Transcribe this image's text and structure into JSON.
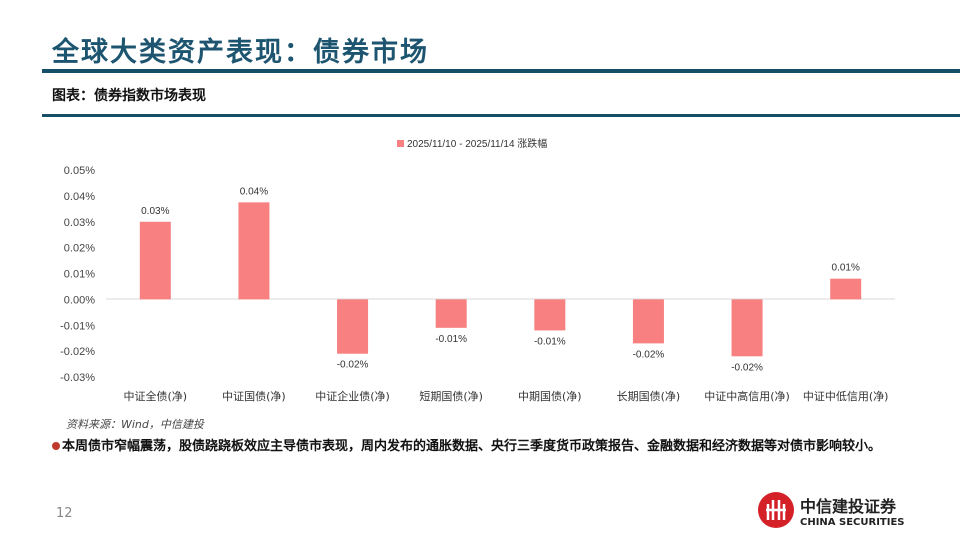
{
  "header": {
    "title": "全球大类资产表现：债券市场",
    "subtitle": "图表：债券指数市场表现"
  },
  "chart_data": {
    "type": "bar",
    "legend": "2025/11/10 - 2025/11/14 涨跌幅",
    "legend_position": "top",
    "categories": [
      "中证全债(净)",
      "中证国债(净)",
      "中证企业债(净)",
      "短期国债(净)",
      "中期国债(净)",
      "长期国债(净)",
      "中证中高信用(净)",
      "中证中低信用(净)"
    ],
    "values": [
      0.03,
      0.0375,
      -0.021,
      -0.011,
      -0.012,
      -0.017,
      -0.022,
      0.008
    ],
    "data_labels": [
      "0.03%",
      "0.04%",
      "-0.02%",
      "-0.01%",
      "-0.01%",
      "-0.02%",
      "-0.02%",
      "0.01%"
    ],
    "yticks": [
      "0.05%",
      "0.04%",
      "0.03%",
      "0.02%",
      "0.01%",
      "0.00%",
      "-0.01%",
      "-0.02%",
      "-0.03%"
    ],
    "ylim": [
      -0.03,
      0.05
    ],
    "color": "#f88080",
    "grid": false
  },
  "source": "资料来源：Wind，中信建投",
  "bullet": "本周债市窄幅震荡，股债跷跷板效应主导债市表现，周内发布的通胀数据、央行三季度货币政策报告、金融数据和经济数据等对债市影响较小。",
  "page_number": "12",
  "logo": {
    "cn": "中信建投证券",
    "en": "CHINA SECURITIES"
  }
}
